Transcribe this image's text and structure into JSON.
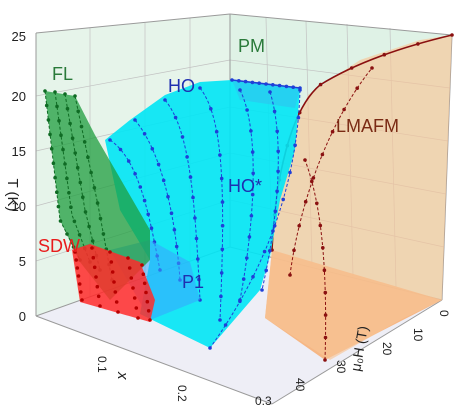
{
  "chart_data": {
    "type": "3d-surface-phase-diagram",
    "axes": {
      "T": {
        "label": "T (K)",
        "ticks": [
          "0",
          "5",
          "10",
          "15",
          "20",
          "25"
        ],
        "range": [
          0,
          25
        ]
      },
      "x": {
        "label": "x",
        "ticks": [
          "0.1",
          "0.2",
          "0.3"
        ],
        "range": [
          0,
          0.3
        ]
      },
      "B": {
        "label": "μ₀H (T)",
        "ticks": [
          "0",
          "10",
          "20",
          "30",
          "40"
        ],
        "range": [
          0,
          40
        ]
      }
    },
    "phase_labels": [
      "PM",
      "FL",
      "HO",
      "HO*",
      "LMAFM",
      "SDW",
      "P1"
    ],
    "colors": {
      "PM_back": "#dff2e6",
      "floor": "#ececf6",
      "HO": "#00e5f5",
      "HO_line": "#1f3fd8",
      "FL": "#1e9e3e",
      "SDW": "#ff2a2a",
      "LMAFM": "#f7b27a",
      "LMAFM_line": "#8a1010",
      "label_green": "#2a7a3a",
      "label_blue": "#1f2fb0",
      "label_red": "#e81c1c",
      "label_brown": "#7a2a14"
    },
    "surfaces": {
      "HO_dome_max_T": 21,
      "FL_max_T": 20,
      "LMAFM_max_T": 25,
      "SDW_max_T": 7
    }
  }
}
